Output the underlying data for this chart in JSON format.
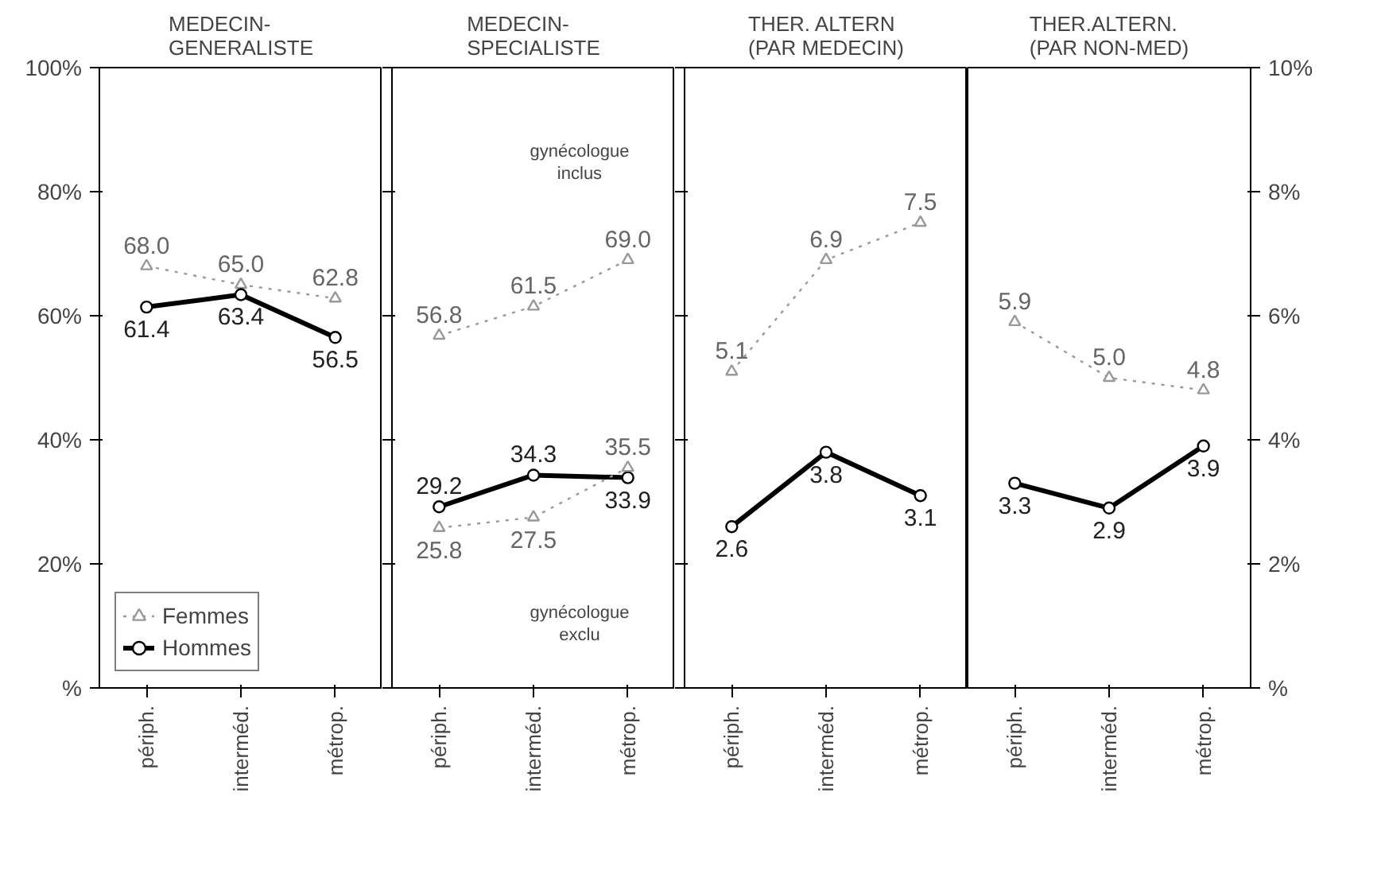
{
  "chart_data": [
    {
      "type": "line",
      "title": "MEDECIN-\nGENERALISTE",
      "categories": [
        "périph.",
        "interméd.",
        "métrop."
      ],
      "ylim": [
        0,
        100
      ],
      "yticks": [
        {
          "value": 0,
          "label": "%"
        },
        {
          "value": 20,
          "label": "20%"
        },
        {
          "value": 40,
          "label": "40%"
        },
        {
          "value": 60,
          "label": "60%"
        },
        {
          "value": 80,
          "label": "80%"
        },
        {
          "value": 100,
          "label": "100%"
        }
      ],
      "tick_labels": true,
      "grid": false,
      "legend": "bottom left",
      "data_labels": true,
      "series": [
        {
          "name": "Femmes",
          "color": "#999999",
          "marker": "triangle",
          "line_style": "dotted",
          "values": [
            68.0,
            65.0,
            62.8
          ],
          "value_labels": [
            "68.0",
            "65.0",
            "62.8"
          ]
        },
        {
          "name": "Hommes",
          "color": "#000000",
          "marker": "circle",
          "line_style": "solid",
          "values": [
            61.4,
            63.4,
            56.5
          ]
        }
      ]
    },
    {
      "type": "line",
      "title": "MEDECIN-\nSPECIALISTE",
      "categories": [
        "périph.",
        "interméd.",
        "métrop."
      ],
      "ylim": [
        0,
        100
      ],
      "yticks": [
        {
          "value": 0,
          "label": null
        },
        {
          "value": 20,
          "label": null
        },
        {
          "value": 40,
          "label": null
        },
        {
          "value": 60,
          "label": null
        },
        {
          "value": 80,
          "label": null
        },
        {
          "value": 100,
          "label": null
        }
      ],
      "tick_labels": "x",
      "grid": false,
      "data_labels": true,
      "annotations": [
        "gynécologue\ninclus",
        "gynécologue\nexclu"
      ],
      "series": [
        {
          "color": "#999999",
          "marker": "triangle",
          "line_style": "dotted",
          "values": [
            56.8,
            61.5,
            69.0
          ],
          "value_labels": [
            "56.8",
            "61.5",
            "69.0"
          ]
        },
        {
          "color": "#000000",
          "marker": "circle",
          "line_style": "solid",
          "values": [
            29.2,
            34.3,
            33.9
          ]
        },
        {
          "color": "#999999",
          "marker": "triangle",
          "line_style": "dotted",
          "values": [
            25.8,
            27.5,
            35.5
          ]
        }
      ]
    },
    {
      "type": "line",
      "title": "THER. ALTERN\n(PAR MEDECIN)",
      "categories": [
        "périph.",
        "interméd.",
        "métrop."
      ],
      "ylim": [
        0,
        10
      ],
      "yticks": [
        {
          "value": 0,
          "label": null
        },
        {
          "value": 2,
          "label": null
        },
        {
          "value": 4,
          "label": null
        },
        {
          "value": 6,
          "label": null
        },
        {
          "value": 8,
          "label": null
        },
        {
          "value": 10,
          "label": null
        }
      ],
      "tick_labels": "x",
      "grid": false,
      "data_labels": true,
      "series": [
        {
          "color": "#999999",
          "marker": "triangle",
          "line_style": "dotted",
          "values": [
            5.1,
            6.9,
            7.5
          ]
        },
        {
          "color": "#000000",
          "marker": "circle",
          "line_style": "solid",
          "values": [
            2.6,
            3.8,
            3.1
          ]
        }
      ]
    },
    {
      "type": "line",
      "title": "THER.ALTERN.\n(PAR NON-MED)",
      "categories": [
        "périph.",
        "interméd.",
        "métrop."
      ],
      "ylim": [
        0,
        10
      ],
      "yticks": [
        {
          "value": 0,
          "label": "%"
        },
        {
          "value": 2,
          "label": "2%"
        },
        {
          "value": 4,
          "label": "4%"
        },
        {
          "value": 6,
          "label": "6%"
        },
        {
          "value": 8,
          "label": "8%"
        },
        {
          "value": 10,
          "label": "10%"
        }
      ],
      "tick_labels": true,
      "grid": false,
      "data_labels": true,
      "series": [
        {
          "color": "#999999",
          "marker": "triangle",
          "line_style": "dotted",
          "values": [
            5.9,
            5.0,
            4.8
          ],
          "value_labels": [
            "5.9",
            "5.0",
            "4.8"
          ]
        },
        {
          "color": "#000000",
          "marker": "circle",
          "line_style": "solid",
          "values": [
            3.3,
            2.9,
            3.9
          ]
        }
      ]
    }
  ]
}
